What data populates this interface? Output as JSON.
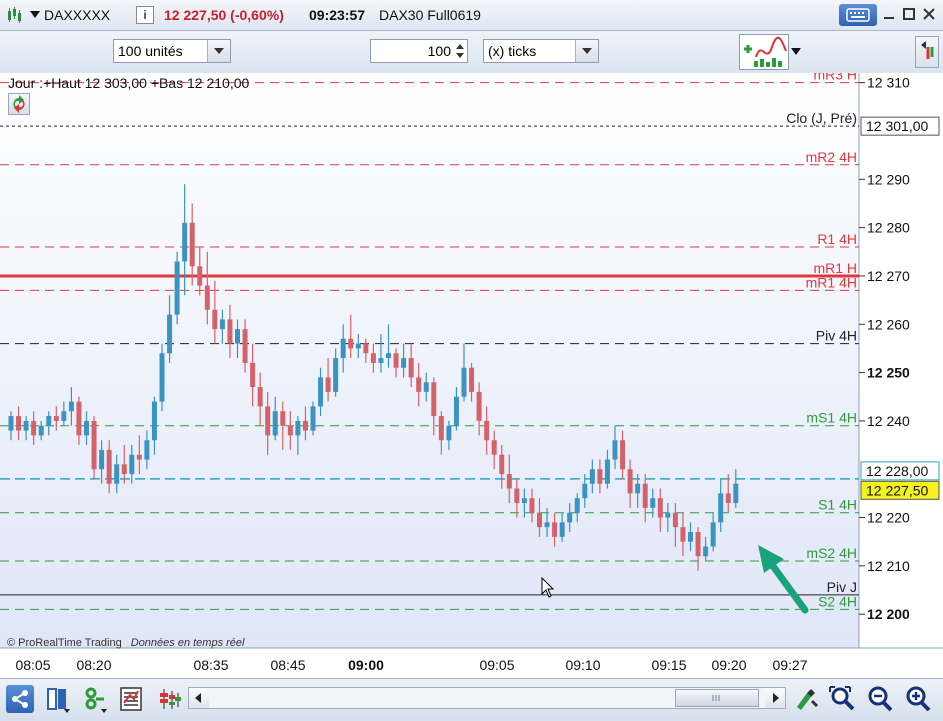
{
  "title_bar": {
    "symbol": "DAXXXXX",
    "info_icon": "info-icon",
    "last_price_change": "12 227,50 (-0,60%)",
    "time": "09:23:57",
    "instrument": "DAX30 Full0619",
    "buttons": [
      "keyboard-icon",
      "minimize-icon",
      "maximize-icon",
      "close-icon"
    ]
  },
  "toolbar": {
    "units_select": "100 unités",
    "ticks_value": "100",
    "ticks_select": "(x) ticks"
  },
  "chart_info": {
    "daily_range": "Jour :+Haut 12 303,00 +Bas 12 210,00",
    "copyright": "© ProRealTime Trading",
    "realtime_note": "Données en temps réel"
  },
  "colors": {
    "up": "#3b93c4",
    "down": "#d4626a",
    "red_level": "#e0383e",
    "green_level": "#2f9a3a",
    "black_level": "#222222",
    "current_price": "#2aa7b8",
    "price_badge": "#f5f21f",
    "arrow": "#1aa37a"
  },
  "chart_data": {
    "type": "candlestick",
    "ylim": [
      12193,
      12312
    ],
    "y_ticks": [
      "12 310",
      "12 290",
      "12 280",
      "12 270",
      "12 260",
      "12 250",
      "12 240",
      "12 220",
      "12 210",
      "12 200"
    ],
    "y_ticks_values": [
      12310,
      12290,
      12280,
      12270,
      12260,
      12250,
      12240,
      12220,
      12210,
      12200
    ],
    "y_ticks_bold": [
      "12 250",
      "12 200"
    ],
    "x_ticks": [
      "08:05",
      "08:20",
      "08:35",
      "08:45",
      "09:00",
      "09:05",
      "09:10",
      "09:15",
      "09:20",
      "09:27"
    ],
    "x_ticks_bold": "09:00",
    "candles": [
      {
        "o": 12238,
        "h": 12242,
        "c": 12241,
        "l": 12236
      },
      {
        "o": 12241,
        "h": 12243,
        "c": 12238,
        "l": 12236
      },
      {
        "o": 12238,
        "h": 12241,
        "c": 12240,
        "l": 12236
      },
      {
        "o": 12240,
        "h": 12242,
        "c": 12237,
        "l": 12235
      },
      {
        "o": 12237,
        "h": 12240,
        "c": 12239,
        "l": 12236
      },
      {
        "o": 12239,
        "h": 12242,
        "c": 12241,
        "l": 12237
      },
      {
        "o": 12241,
        "h": 12243,
        "c": 12240,
        "l": 12238
      },
      {
        "o": 12240,
        "h": 12244,
        "c": 12242,
        "l": 12239
      },
      {
        "o": 12242,
        "h": 12247,
        "c": 12244,
        "l": 12239
      },
      {
        "o": 12244,
        "h": 12245,
        "c": 12237,
        "l": 12235
      },
      {
        "o": 12237,
        "h": 12242,
        "c": 12240,
        "l": 12235
      },
      {
        "o": 12240,
        "h": 12241,
        "c": 12230,
        "l": 12228
      },
      {
        "o": 12230,
        "h": 12236,
        "c": 12234,
        "l": 12227
      },
      {
        "o": 12234,
        "h": 12236,
        "c": 12227,
        "l": 12225
      },
      {
        "o": 12227,
        "h": 12233,
        "c": 12231,
        "l": 12225
      },
      {
        "o": 12231,
        "h": 12235,
        "c": 12229,
        "l": 12227
      },
      {
        "o": 12229,
        "h": 12235,
        "c": 12233,
        "l": 12227
      },
      {
        "o": 12233,
        "h": 12237,
        "c": 12232,
        "l": 12229
      },
      {
        "o": 12232,
        "h": 12238,
        "c": 12236,
        "l": 12230
      },
      {
        "o": 12236,
        "h": 12245,
        "c": 12244,
        "l": 12233
      },
      {
        "o": 12244,
        "h": 12256,
        "c": 12254,
        "l": 12242
      },
      {
        "o": 12254,
        "h": 12266,
        "c": 12262,
        "l": 12252
      },
      {
        "o": 12262,
        "h": 12275,
        "c": 12273,
        "l": 12260
      },
      {
        "o": 12273,
        "h": 12289,
        "c": 12281,
        "l": 12266
      },
      {
        "o": 12281,
        "h": 12285,
        "c": 12272,
        "l": 12268
      },
      {
        "o": 12272,
        "h": 12276,
        "c": 12268,
        "l": 12266
      },
      {
        "o": 12268,
        "h": 12275,
        "c": 12263,
        "l": 12260
      },
      {
        "o": 12263,
        "h": 12269,
        "c": 12259,
        "l": 12256
      },
      {
        "o": 12259,
        "h": 12263,
        "c": 12261,
        "l": 12256
      },
      {
        "o": 12261,
        "h": 12264,
        "c": 12256,
        "l": 12253
      },
      {
        "o": 12256,
        "h": 12261,
        "c": 12259,
        "l": 12253
      },
      {
        "o": 12259,
        "h": 12261,
        "c": 12252,
        "l": 12250
      },
      {
        "o": 12252,
        "h": 12256,
        "c": 12247,
        "l": 12243
      },
      {
        "o": 12247,
        "h": 12250,
        "c": 12243,
        "l": 12239
      },
      {
        "o": 12243,
        "h": 12246,
        "c": 12237,
        "l": 12233
      },
      {
        "o": 12237,
        "h": 12245,
        "c": 12242,
        "l": 12236
      },
      {
        "o": 12242,
        "h": 12244,
        "c": 12239,
        "l": 12234
      },
      {
        "o": 12239,
        "h": 12242,
        "c": 12237,
        "l": 12234
      },
      {
        "o": 12237,
        "h": 12241,
        "c": 12240,
        "l": 12233
      },
      {
        "o": 12240,
        "h": 12243,
        "c": 12238,
        "l": 12236
      },
      {
        "o": 12238,
        "h": 12244,
        "c": 12243,
        "l": 12237
      },
      {
        "o": 12243,
        "h": 12251,
        "c": 12249,
        "l": 12241
      },
      {
        "o": 12249,
        "h": 12253,
        "c": 12246,
        "l": 12244
      },
      {
        "o": 12246,
        "h": 12255,
        "c": 12253,
        "l": 12245
      },
      {
        "o": 12253,
        "h": 12260,
        "c": 12257,
        "l": 12250
      },
      {
        "o": 12257,
        "h": 12262,
        "c": 12255,
        "l": 12253
      },
      {
        "o": 12255,
        "h": 12258,
        "c": 12256,
        "l": 12253
      },
      {
        "o": 12256,
        "h": 12257,
        "c": 12254,
        "l": 12252
      },
      {
        "o": 12254,
        "h": 12256,
        "c": 12252,
        "l": 12250
      },
      {
        "o": 12252,
        "h": 12258,
        "c": 12253,
        "l": 12250
      },
      {
        "o": 12253,
        "h": 12260,
        "c": 12254,
        "l": 12251
      },
      {
        "o": 12254,
        "h": 12255,
        "c": 12251,
        "l": 12249
      },
      {
        "o": 12251,
        "h": 12256,
        "c": 12253,
        "l": 12249
      },
      {
        "o": 12253,
        "h": 12256,
        "c": 12249,
        "l": 12247
      },
      {
        "o": 12249,
        "h": 12252,
        "c": 12246,
        "l": 12243
      },
      {
        "o": 12246,
        "h": 12250,
        "c": 12248,
        "l": 12244
      },
      {
        "o": 12248,
        "h": 12249,
        "c": 12241,
        "l": 12237
      },
      {
        "o": 12241,
        "h": 12242,
        "c": 12236,
        "l": 12233
      },
      {
        "o": 12236,
        "h": 12240,
        "c": 12239,
        "l": 12234
      },
      {
        "o": 12239,
        "h": 12247,
        "c": 12245,
        "l": 12238
      },
      {
        "o": 12245,
        "h": 12256,
        "c": 12251,
        "l": 12244
      },
      {
        "o": 12251,
        "h": 12252,
        "c": 12246,
        "l": 12244
      },
      {
        "o": 12246,
        "h": 12248,
        "c": 12240,
        "l": 12237
      },
      {
        "o": 12240,
        "h": 12243,
        "c": 12236,
        "l": 12233
      },
      {
        "o": 12236,
        "h": 12238,
        "c": 12233,
        "l": 12230
      },
      {
        "o": 12233,
        "h": 12235,
        "c": 12229,
        "l": 12226
      },
      {
        "o": 12229,
        "h": 12233,
        "c": 12226,
        "l": 12223
      },
      {
        "o": 12226,
        "h": 12228,
        "c": 12223,
        "l": 12220
      },
      {
        "o": 12223,
        "h": 12226,
        "c": 12224,
        "l": 12220
      },
      {
        "o": 12224,
        "h": 12226,
        "c": 12221,
        "l": 12219
      },
      {
        "o": 12221,
        "h": 12224,
        "c": 12218,
        "l": 12216
      },
      {
        "o": 12218,
        "h": 12222,
        "c": 12219,
        "l": 12216
      },
      {
        "o": 12219,
        "h": 12221,
        "c": 12216,
        "l": 12214
      },
      {
        "o": 12216,
        "h": 12221,
        "c": 12219,
        "l": 12215
      },
      {
        "o": 12219,
        "h": 12223,
        "c": 12221,
        "l": 12217
      },
      {
        "o": 12221,
        "h": 12225,
        "c": 12224,
        "l": 12219
      },
      {
        "o": 12224,
        "h": 12229,
        "c": 12227,
        "l": 12222
      },
      {
        "o": 12227,
        "h": 12232,
        "c": 12230,
        "l": 12225
      },
      {
        "o": 12230,
        "h": 12232,
        "c": 12227,
        "l": 12225
      },
      {
        "o": 12227,
        "h": 12234,
        "c": 12232,
        "l": 12226
      },
      {
        "o": 12232,
        "h": 12239,
        "c": 12236,
        "l": 12230
      },
      {
        "o": 12236,
        "h": 12238,
        "c": 12230,
        "l": 12228
      },
      {
        "o": 12230,
        "h": 12232,
        "c": 12225,
        "l": 12222
      },
      {
        "o": 12225,
        "h": 12229,
        "c": 12227,
        "l": 12222
      },
      {
        "o": 12227,
        "h": 12229,
        "c": 12222,
        "l": 12219
      },
      {
        "o": 12222,
        "h": 12226,
        "c": 12224,
        "l": 12220
      },
      {
        "o": 12224,
        "h": 12226,
        "c": 12220,
        "l": 12217
      },
      {
        "o": 12220,
        "h": 12223,
        "c": 12221,
        "l": 12217
      },
      {
        "o": 12221,
        "h": 12223,
        "c": 12218,
        "l": 12214
      },
      {
        "o": 12218,
        "h": 12221,
        "c": 12215,
        "l": 12212
      },
      {
        "o": 12215,
        "h": 12219,
        "c": 12217,
        "l": 12213
      },
      {
        "o": 12217,
        "h": 12218,
        "c": 12212,
        "l": 12209
      },
      {
        "o": 12212,
        "h": 12216,
        "c": 12214,
        "l": 12211
      },
      {
        "o": 12214,
        "h": 12221,
        "c": 12219,
        "l": 12213
      },
      {
        "o": 12219,
        "h": 12228,
        "c": 12225,
        "l": 12217
      },
      {
        "o": 12225,
        "h": 12229,
        "c": 12223,
        "l": 12221
      },
      {
        "o": 12223,
        "h": 12230,
        "c": 12227,
        "l": 12222
      }
    ],
    "levels": [
      {
        "label": "mR3 H",
        "value": 12310,
        "color": "red",
        "style": "dashed"
      },
      {
        "label": "Clo (J, Pré)",
        "value": 12301,
        "color": "black",
        "style": "dotted",
        "badge": "12 301,00"
      },
      {
        "label": "mR2 4H",
        "value": 12293,
        "color": "red",
        "style": "dashed"
      },
      {
        "label": "R1 4H",
        "value": 12276,
        "color": "red",
        "style": "dashed"
      },
      {
        "label": "mR1 H",
        "value": 12270,
        "color": "red",
        "style": "solid"
      },
      {
        "label": "mR1 4H",
        "value": 12267,
        "color": "red",
        "style": "dashed"
      },
      {
        "label": "Piv 4H",
        "value": 12256,
        "color": "black",
        "style": "dashed"
      },
      {
        "label": "mS1 4H",
        "value": 12239,
        "color": "green",
        "style": "dashed"
      },
      {
        "label": "",
        "value": 12228,
        "color": "current",
        "style": "dashed",
        "badge": "12 228,00"
      },
      {
        "label": "",
        "value": 12227.5,
        "color": "badge",
        "style": "none",
        "badge": "12 227,50"
      },
      {
        "label": "S1 4H",
        "value": 12221,
        "color": "green",
        "style": "dashed"
      },
      {
        "label": "mS2 4H",
        "value": 12211,
        "color": "green",
        "style": "dashed"
      },
      {
        "label": "Piv J",
        "value": 12204,
        "color": "black",
        "style": "solid"
      },
      {
        "label": "S2 4H",
        "value": 12201,
        "color": "green",
        "style": "dashed"
      }
    ]
  },
  "bottom_bar": {
    "icons": [
      "share-icon",
      "layout-icon",
      "link-icon",
      "list-icon",
      "indicator-icon",
      "tools-icon",
      "zoom-fit-icon",
      "zoom-out-icon",
      "zoom-in-icon"
    ]
  }
}
